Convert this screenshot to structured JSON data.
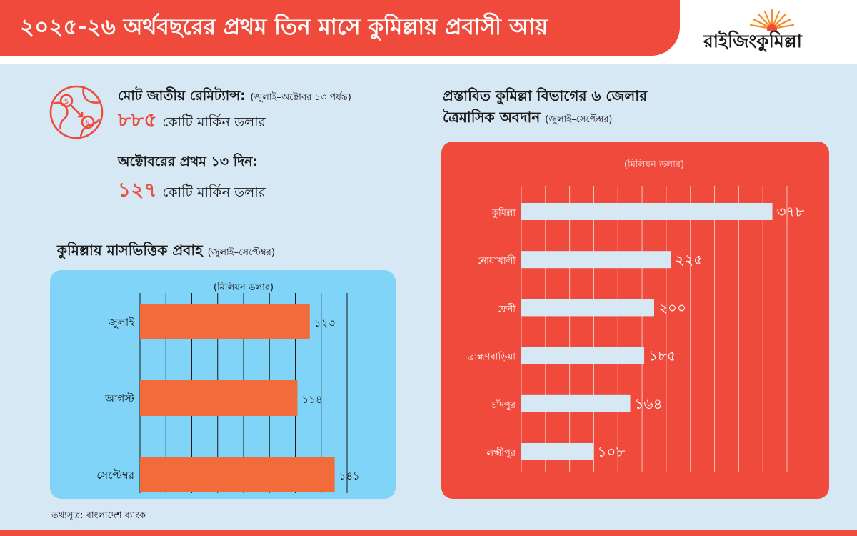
{
  "header": {
    "title": "২০২৫-২৬ অর্থবছরের প্রথম তিন মাসে কুমিল্লায় প্রবাসী আয়",
    "logo_text": "রাইজিংকুমিল্লা"
  },
  "stats": {
    "total_label": "মোট জাতীয় রেমিট্যান্স:",
    "total_period": "(জুলাই–অক্টোবর ১৩ পর্যন্ত)",
    "total_value": "৮৮৫",
    "total_unit": "কোটি মার্কিন ডলার",
    "october_label": "অক্টোবরের প্রথম ১৩ দিন:",
    "october_value": "১২৭",
    "october_unit": "কোটি মার্কিন ডলার"
  },
  "source": "তথ্যসূত্র: বাংলাদেশ ব্যাংক",
  "colors": {
    "accent_red": "#ef4a3c",
    "orange_bar": "#f26b3a",
    "light_blue_panel": "#7fd4f8",
    "pale_blue_bar": "#d7e8f5",
    "background": "#d7e8f5"
  },
  "chart_data": [
    {
      "type": "bar",
      "orientation": "horizontal",
      "title": "কুমিল্লায় মাসভিত্তিক প্রবাহ",
      "subtitle": "(জুলাই–সেপ্টেম্বর)",
      "unit_label": "(মিলিয়ন ডলার)",
      "categories": [
        "জুলাই",
        "আগস্ট",
        "সেপ্টেম্বর"
      ],
      "values": [
        123,
        114,
        141
      ],
      "value_labels": [
        "১২৩",
        "১১৪",
        "১৪১"
      ],
      "xlim": [
        0,
        150
      ],
      "grid": true
    },
    {
      "type": "bar",
      "orientation": "horizontal",
      "title": "প্রস্তাবিত কুমিল্লা বিভাগের ৬ জেলার",
      "title_line2": "ত্রৈমাসিক অবদান",
      "subtitle": "(জুলাই–সেপ্টেম্বর)",
      "unit_label": "(মিলিয়ন ডলার)",
      "categories": [
        "কুমিল্লা",
        "নোয়াখালী",
        "ফেনী",
        "ব্রাহ্মণবাড়িয়া",
        "চাঁদপুর",
        "লক্ষ্মীপুর"
      ],
      "values": [
        378,
        225,
        200,
        185,
        164,
        108
      ],
      "value_labels": [
        "৩৭৮",
        "২২৫",
        "২০০",
        "১৮৫",
        "১৬৪",
        "১০৮"
      ],
      "xlim": [
        0,
        400
      ],
      "grid": true
    }
  ]
}
